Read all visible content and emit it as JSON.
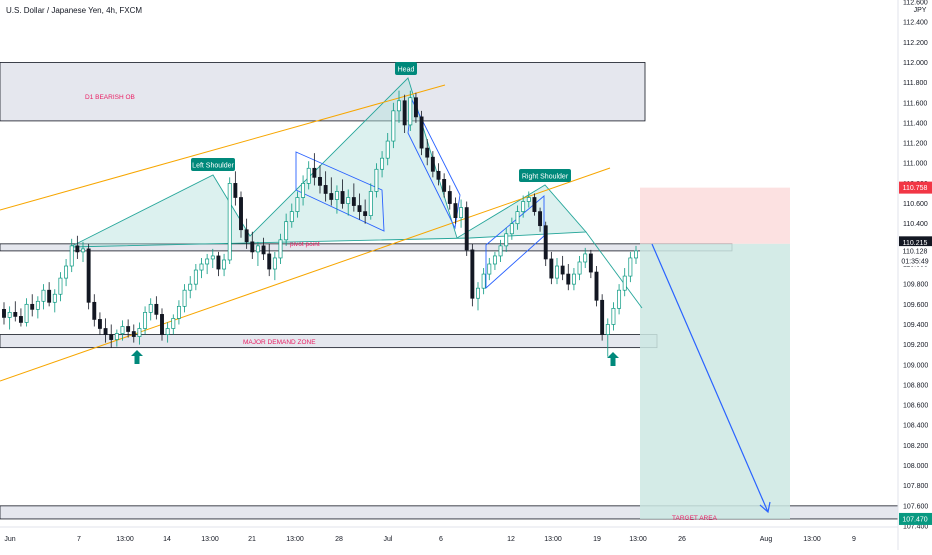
{
  "header": {
    "title": "U.S. Dollar / Japanese Yen, 4h, FXCM",
    "currency": "JPY"
  },
  "chart_data": {
    "type": "candlestick",
    "symbol": "U.S. Dollar / Japanese Yen",
    "interval": "4h",
    "source": "FXCM",
    "ylim": [
      107.3,
      112.65
    ],
    "y_ticks": [
      "112.600",
      "112.400",
      "112.200",
      "112.000",
      "111.800",
      "111.600",
      "111.400",
      "111.200",
      "111.000",
      "110.800",
      "110.600",
      "110.400",
      "110.200",
      "110.000",
      "109.800",
      "109.600",
      "109.400",
      "109.200",
      "109.000",
      "108.800",
      "108.600",
      "108.400",
      "108.200",
      "108.000",
      "107.800",
      "107.600",
      "107.400"
    ],
    "x_ticks": [
      "Jun",
      "7",
      "13:00",
      "14",
      "13:00",
      "21",
      "13:00",
      "28",
      "Jul",
      "6",
      "12",
      "13:00",
      "19",
      "13:00",
      "26",
      "Aug",
      "13:00",
      "9"
    ],
    "price_tags": [
      {
        "label": "110.758",
        "value": 110.758,
        "color": "#f23645"
      },
      {
        "label": "110.215",
        "value": 110.215,
        "color": "#131722"
      },
      {
        "label": "110.128",
        "value": 110.128,
        "color": "none"
      },
      {
        "label": "01:35:49",
        "value": 110.03,
        "color": "none"
      },
      {
        "label": "107.470",
        "value": 107.47,
        "color": "#089981"
      }
    ],
    "zones": [
      {
        "label": "D1 BEARISH OB",
        "high": 112.0,
        "low": 111.42
      },
      {
        "label": "pivot point",
        "high": 110.2,
        "low": 110.13
      },
      {
        "label": "MAJOR DEMAND ZONE",
        "high": 109.3,
        "low": 109.17
      },
      {
        "label": "TARGET AREA",
        "high": 107.6,
        "low": 107.47
      }
    ],
    "pattern_labels": [
      "Left Shoulder",
      "Head",
      "Right Shoulder"
    ],
    "trade": {
      "entry": 110.2,
      "stop": 110.758,
      "target": 107.47
    },
    "colors": {
      "up": "#089981",
      "down": "#131722",
      "zone_fill": "#e0e3eb",
      "channel": "#f7a600",
      "pattern_fill": "#b2dfdb",
      "trend_line": "#2962ff",
      "stop_fill": "#fcdcdc",
      "target_fill": "#cde8e3",
      "label_text": "#e91e63"
    },
    "candles": [
      [
        109.55,
        109.62,
        109.4,
        109.47
      ],
      [
        109.47,
        109.58,
        109.35,
        109.52
      ],
      [
        109.52,
        109.63,
        109.43,
        109.48
      ],
      [
        109.48,
        109.56,
        109.38,
        109.42
      ],
      [
        109.42,
        109.66,
        109.38,
        109.6
      ],
      [
        109.6,
        109.7,
        109.48,
        109.55
      ],
      [
        109.55,
        109.68,
        109.46,
        109.63
      ],
      [
        109.63,
        109.8,
        109.55,
        109.74
      ],
      [
        109.74,
        109.82,
        109.58,
        109.62
      ],
      [
        109.62,
        109.75,
        109.52,
        109.7
      ],
      [
        109.7,
        109.92,
        109.63,
        109.86
      ],
      [
        109.86,
        110.05,
        109.78,
        109.98
      ],
      [
        109.98,
        110.25,
        109.92,
        110.18
      ],
      [
        110.18,
        110.28,
        110.05,
        110.12
      ],
      [
        110.12,
        110.22,
        110.02,
        110.15
      ],
      [
        110.15,
        110.2,
        109.55,
        109.62
      ],
      [
        109.62,
        109.7,
        109.38,
        109.45
      ],
      [
        109.45,
        109.52,
        109.3,
        109.36
      ],
      [
        109.36,
        109.46,
        109.22,
        109.3
      ],
      [
        109.3,
        109.4,
        109.17,
        109.25
      ],
      [
        109.25,
        109.35,
        109.18,
        109.31
      ],
      [
        109.31,
        109.44,
        109.24,
        109.38
      ],
      [
        109.38,
        109.45,
        109.27,
        109.33
      ],
      [
        109.33,
        109.4,
        109.22,
        109.28
      ],
      [
        109.28,
        109.42,
        109.2,
        109.36
      ],
      [
        109.36,
        109.58,
        109.3,
        109.52
      ],
      [
        109.52,
        109.66,
        109.44,
        109.6
      ],
      [
        109.6,
        109.68,
        109.45,
        109.5
      ],
      [
        109.5,
        109.56,
        109.24,
        109.3
      ],
      [
        109.3,
        109.42,
        109.22,
        109.36
      ],
      [
        109.36,
        109.5,
        109.3,
        109.46
      ],
      [
        109.46,
        109.64,
        109.4,
        109.58
      ],
      [
        109.58,
        109.8,
        109.52,
        109.74
      ],
      [
        109.74,
        109.88,
        109.66,
        109.8
      ],
      [
        109.8,
        110.0,
        109.74,
        109.94
      ],
      [
        109.94,
        110.06,
        109.86,
        110.0
      ],
      [
        110.0,
        110.1,
        109.9,
        110.05
      ],
      [
        110.05,
        110.15,
        109.96,
        110.08
      ],
      [
        110.08,
        110.12,
        109.88,
        109.95
      ],
      [
        109.95,
        110.1,
        109.88,
        110.04
      ],
      [
        110.04,
        110.86,
        110.0,
        110.8
      ],
      [
        110.8,
        110.92,
        110.58,
        110.66
      ],
      [
        110.66,
        110.72,
        110.26,
        110.34
      ],
      [
        110.34,
        110.45,
        110.15,
        110.22
      ],
      [
        110.22,
        110.32,
        110.05,
        110.12
      ],
      [
        110.12,
        110.22,
        109.98,
        110.18
      ],
      [
        110.18,
        110.26,
        110.04,
        110.1
      ],
      [
        110.1,
        110.2,
        109.88,
        109.95
      ],
      [
        109.95,
        110.12,
        109.84,
        110.06
      ],
      [
        110.06,
        110.3,
        110.0,
        110.24
      ],
      [
        110.24,
        110.5,
        110.18,
        110.42
      ],
      [
        110.42,
        110.6,
        110.36,
        110.52
      ],
      [
        110.52,
        110.72,
        110.46,
        110.66
      ],
      [
        110.66,
        110.88,
        110.58,
        110.8
      ],
      [
        110.8,
        111.02,
        110.74,
        110.95
      ],
      [
        110.95,
        111.1,
        110.78,
        110.86
      ],
      [
        110.86,
        110.98,
        110.7,
        110.78
      ],
      [
        110.78,
        110.92,
        110.62,
        110.7
      ],
      [
        110.7,
        110.86,
        110.58,
        110.64
      ],
      [
        110.64,
        110.78,
        110.5,
        110.72
      ],
      [
        110.72,
        110.84,
        110.55,
        110.6
      ],
      [
        110.6,
        110.74,
        110.48,
        110.66
      ],
      [
        110.66,
        110.8,
        110.52,
        110.58
      ],
      [
        110.58,
        110.7,
        110.44,
        110.52
      ],
      [
        110.52,
        110.64,
        110.4,
        110.48
      ],
      [
        110.48,
        110.8,
        110.44,
        110.72
      ],
      [
        110.72,
        111.0,
        110.66,
        110.94
      ],
      [
        110.94,
        111.12,
        110.86,
        111.05
      ],
      [
        111.05,
        111.3,
        110.98,
        111.22
      ],
      [
        111.22,
        111.6,
        111.15,
        111.52
      ],
      [
        111.52,
        111.72,
        111.4,
        111.62
      ],
      [
        111.62,
        111.68,
        111.3,
        111.38
      ],
      [
        111.38,
        111.72,
        111.32,
        111.65
      ],
      [
        111.65,
        111.7,
        111.4,
        111.46
      ],
      [
        111.46,
        111.52,
        111.08,
        111.15
      ],
      [
        111.15,
        111.24,
        110.98,
        111.06
      ],
      [
        111.06,
        111.12,
        110.86,
        110.92
      ],
      [
        110.92,
        111.0,
        110.78,
        110.84
      ],
      [
        110.84,
        110.9,
        110.66,
        110.72
      ],
      [
        110.72,
        110.78,
        110.54,
        110.6
      ],
      [
        110.6,
        110.66,
        110.4,
        110.46
      ],
      [
        110.46,
        110.64,
        110.36,
        110.56
      ],
      [
        110.56,
        110.62,
        110.08,
        110.14
      ],
      [
        110.14,
        110.2,
        109.58,
        109.66
      ],
      [
        109.66,
        109.82,
        109.54,
        109.76
      ],
      [
        109.76,
        109.96,
        109.7,
        109.9
      ],
      [
        109.9,
        110.06,
        109.84,
        110.0
      ],
      [
        110.0,
        110.12,
        109.94,
        110.08
      ],
      [
        110.08,
        110.24,
        110.02,
        110.18
      ],
      [
        110.18,
        110.36,
        110.12,
        110.3
      ],
      [
        110.3,
        110.46,
        110.24,
        110.4
      ],
      [
        110.4,
        110.58,
        110.34,
        110.52
      ],
      [
        110.52,
        110.68,
        110.46,
        110.62
      ],
      [
        110.62,
        110.72,
        110.56,
        110.66
      ],
      [
        110.66,
        110.7,
        110.48,
        110.52
      ],
      [
        110.52,
        110.56,
        110.32,
        110.38
      ],
      [
        110.38,
        110.42,
        109.98,
        110.05
      ],
      [
        110.05,
        110.12,
        109.8,
        109.86
      ],
      [
        109.86,
        110.06,
        109.8,
        109.98
      ],
      [
        109.98,
        110.08,
        109.84,
        109.9
      ],
      [
        109.9,
        110.0,
        109.74,
        109.8
      ],
      [
        109.8,
        109.96,
        109.74,
        109.9
      ],
      [
        109.9,
        110.08,
        109.84,
        110.02
      ],
      [
        110.02,
        110.16,
        109.96,
        110.1
      ],
      [
        110.1,
        110.14,
        109.86,
        109.92
      ],
      [
        109.92,
        109.98,
        109.58,
        109.64
      ],
      [
        109.64,
        109.7,
        109.24,
        109.3
      ],
      [
        109.3,
        109.46,
        109.08,
        109.4
      ],
      [
        109.4,
        109.62,
        109.34,
        109.56
      ],
      [
        109.56,
        109.8,
        109.5,
        109.74
      ],
      [
        109.74,
        109.96,
        109.68,
        109.88
      ],
      [
        109.88,
        110.12,
        109.82,
        110.06
      ],
      [
        110.06,
        110.18,
        110.0,
        110.13
      ]
    ]
  }
}
